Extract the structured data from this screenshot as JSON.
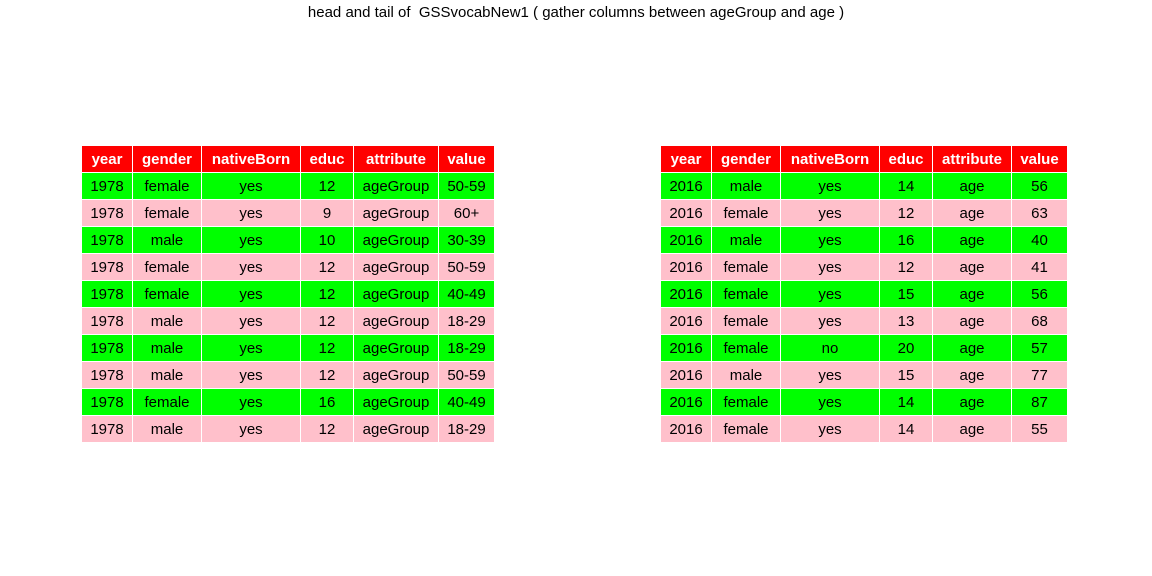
{
  "title": "head and tail of  GSSvocabNew1 ( gather columns between ageGroup and age )",
  "colors": {
    "header_bg": "#ff0000",
    "header_text": "#ffffff",
    "row_odd": "#00ff00",
    "row_even": "#ffc0cb"
  },
  "head_table": {
    "columns": [
      "year",
      "gender",
      "nativeBorn",
      "educ",
      "attribute",
      "value"
    ],
    "rows": [
      [
        "1978",
        "female",
        "yes",
        "12",
        "ageGroup",
        "50-59"
      ],
      [
        "1978",
        "female",
        "yes",
        "9",
        "ageGroup",
        "60+"
      ],
      [
        "1978",
        "male",
        "yes",
        "10",
        "ageGroup",
        "30-39"
      ],
      [
        "1978",
        "female",
        "yes",
        "12",
        "ageGroup",
        "50-59"
      ],
      [
        "1978",
        "female",
        "yes",
        "12",
        "ageGroup",
        "40-49"
      ],
      [
        "1978",
        "male",
        "yes",
        "12",
        "ageGroup",
        "18-29"
      ],
      [
        "1978",
        "male",
        "yes",
        "12",
        "ageGroup",
        "18-29"
      ],
      [
        "1978",
        "male",
        "yes",
        "12",
        "ageGroup",
        "50-59"
      ],
      [
        "1978",
        "female",
        "yes",
        "16",
        "ageGroup",
        "40-49"
      ],
      [
        "1978",
        "male",
        "yes",
        "12",
        "ageGroup",
        "18-29"
      ]
    ]
  },
  "tail_table": {
    "columns": [
      "year",
      "gender",
      "nativeBorn",
      "educ",
      "attribute",
      "value"
    ],
    "rows": [
      [
        "2016",
        "male",
        "yes",
        "14",
        "age",
        "56"
      ],
      [
        "2016",
        "female",
        "yes",
        "12",
        "age",
        "63"
      ],
      [
        "2016",
        "male",
        "yes",
        "16",
        "age",
        "40"
      ],
      [
        "2016",
        "female",
        "yes",
        "12",
        "age",
        "41"
      ],
      [
        "2016",
        "female",
        "yes",
        "15",
        "age",
        "56"
      ],
      [
        "2016",
        "female",
        "yes",
        "13",
        "age",
        "68"
      ],
      [
        "2016",
        "female",
        "no",
        "20",
        "age",
        "57"
      ],
      [
        "2016",
        "male",
        "yes",
        "15",
        "age",
        "77"
      ],
      [
        "2016",
        "female",
        "yes",
        "14",
        "age",
        "87"
      ],
      [
        "2016",
        "female",
        "yes",
        "14",
        "age",
        "55"
      ]
    ]
  }
}
